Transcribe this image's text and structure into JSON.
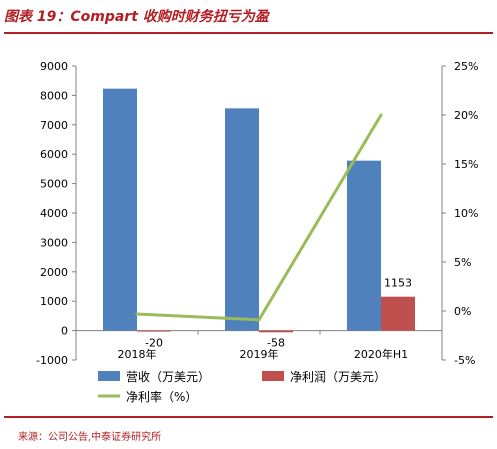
{
  "header": {
    "title": "图表 19：Compart 收购时财务扭亏为盈"
  },
  "footer": {
    "source": "来源：公司公告,中泰证券研究所"
  },
  "chart_data": {
    "type": "bar",
    "categories": [
      "2018年",
      "2019年",
      "2020年H1"
    ],
    "series": [
      {
        "name": "营收（万美元）",
        "type": "bar",
        "axis": "left",
        "color": "#4f81bd",
        "values": [
          8230,
          7560,
          5780
        ]
      },
      {
        "name": "净利润（万美元）",
        "type": "bar",
        "axis": "left",
        "color": "#c0504d",
        "values": [
          -20,
          -58,
          1153
        ],
        "data_labels": [
          "-20",
          "-58",
          "1153"
        ]
      },
      {
        "name": "净利率（%）",
        "type": "line",
        "axis": "right",
        "color": "#9bbb59",
        "values": [
          -0.3,
          -0.9,
          20.0
        ]
      }
    ],
    "y_left": {
      "min": -1000,
      "max": 9000,
      "ticks": [
        -1000,
        0,
        1000,
        2000,
        3000,
        4000,
        5000,
        6000,
        7000,
        8000,
        9000
      ],
      "tick_labels": [
        "-1000",
        "0",
        "1000",
        "2000",
        "3000",
        "4000",
        "5000",
        "6000",
        "7000",
        "8000",
        "9000"
      ]
    },
    "y_right": {
      "min": -5,
      "max": 25,
      "ticks": [
        -5,
        0,
        5,
        10,
        15,
        20,
        25
      ],
      "tick_labels": [
        "-5%",
        "0%",
        "5%",
        "10%",
        "15%",
        "20%",
        "25%"
      ]
    },
    "grid": false,
    "legend": {
      "position": "bottom"
    }
  }
}
